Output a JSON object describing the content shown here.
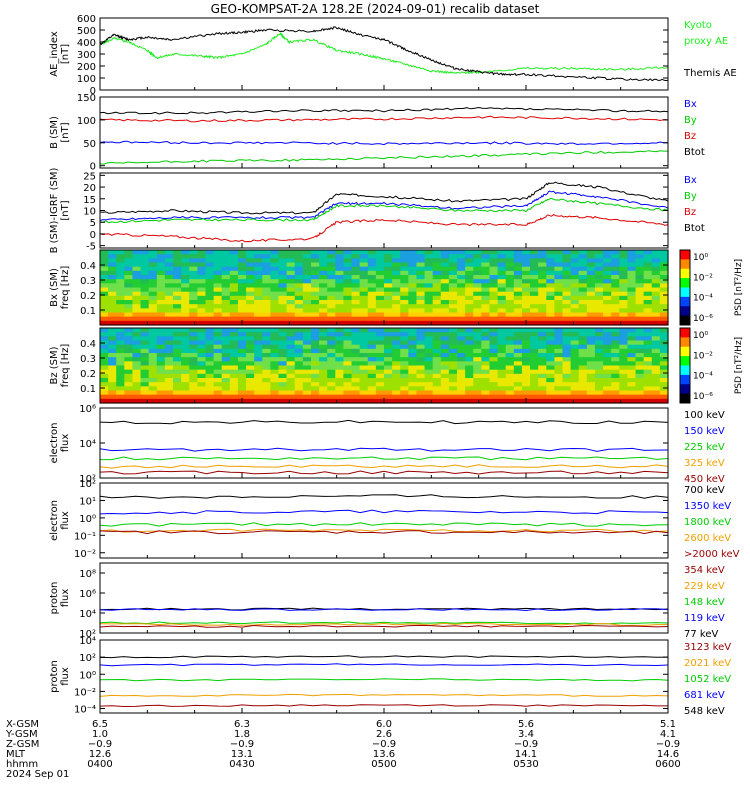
{
  "title": "GEO-KOMPSAT-2A 128.2E (2024-09-01) recalib dataset",
  "colors": {
    "black": "#000000",
    "blue": "#0000ff",
    "green": "#00cc00",
    "lime": "#22ee22",
    "red": "#dd0000",
    "orange": "#f0a000",
    "darkred": "#990000"
  },
  "panels": [
    {
      "id": "ae",
      "ylabel": [
        "AE_index",
        "[nT]"
      ],
      "scale": "linear",
      "ylim": [
        0,
        600
      ],
      "ticks": [
        "0",
        "100",
        "200",
        "300",
        "400",
        "500",
        "600"
      ],
      "tick_values": [
        0,
        100,
        200,
        300,
        400,
        500,
        600
      ],
      "legend": [
        {
          "text": "Kyoto",
          "color": "lime"
        },
        {
          "text": "proxy AE",
          "color": "lime"
        },
        {
          "text": "",
          "color": "black"
        },
        {
          "text": "Themis AE",
          "color": "black"
        }
      ],
      "series": [
        {
          "name": "Kyoto proxy AE",
          "color": "lime",
          "x": [
            0,
            3,
            6,
            10,
            12,
            16,
            22,
            25,
            30,
            35,
            38,
            40,
            45,
            50,
            55,
            60,
            65,
            70,
            75,
            80,
            90,
            100,
            110,
            120
          ],
          "y": [
            380,
            430,
            400,
            330,
            270,
            300,
            280,
            270,
            300,
            380,
            470,
            400,
            420,
            330,
            300,
            260,
            210,
            160,
            140,
            150,
            180,
            180,
            170,
            190
          ]
        },
        {
          "name": "Themis AE",
          "color": "black",
          "x": [
            0,
            3,
            6,
            10,
            15,
            25,
            30,
            35,
            45,
            50,
            55,
            60,
            65,
            70,
            75,
            80,
            85,
            90,
            100,
            110,
            120
          ],
          "y": [
            380,
            460,
            420,
            440,
            420,
            470,
            480,
            500,
            490,
            520,
            460,
            420,
            330,
            250,
            180,
            150,
            130,
            130,
            110,
            90,
            80
          ]
        }
      ]
    },
    {
      "id": "bsm",
      "ylabel": [
        "B (SM)",
        "[nT]"
      ],
      "scale": "linear",
      "ylim": [
        -5,
        150
      ],
      "ticks": [
        "0",
        "50",
        "100",
        "150"
      ],
      "tick_values": [
        0,
        50,
        100,
        150
      ],
      "legend": [
        {
          "text": "Bx",
          "color": "blue"
        },
        {
          "text": "By",
          "color": "green"
        },
        {
          "text": "Bz",
          "color": "red"
        },
        {
          "text": "Btot",
          "color": "black"
        }
      ],
      "series": [
        {
          "name": "Btot",
          "color": "black",
          "x": [
            0,
            20,
            40,
            60,
            80,
            100,
            120
          ],
          "y": [
            115,
            115,
            120,
            120,
            125,
            122,
            118
          ]
        },
        {
          "name": "Bz",
          "color": "red",
          "x": [
            0,
            20,
            40,
            60,
            80,
            100,
            120
          ],
          "y": [
            100,
            98,
            100,
            102,
            106,
            104,
            100
          ]
        },
        {
          "name": "Bx",
          "color": "blue",
          "x": [
            0,
            20,
            40,
            60,
            80,
            100,
            120
          ],
          "y": [
            52,
            50,
            50,
            48,
            50,
            48,
            50
          ]
        },
        {
          "name": "By",
          "color": "green",
          "x": [
            0,
            20,
            40,
            60,
            80,
            100,
            120
          ],
          "y": [
            4,
            10,
            12,
            17,
            22,
            28,
            32
          ]
        }
      ]
    },
    {
      "id": "bsmigrf",
      "ylabel": [
        "B (SM)-IGRF (SM)",
        "[nT]"
      ],
      "scale": "linear",
      "ylim": [
        -6,
        26
      ],
      "ticks": [
        "-5",
        "0",
        "5",
        "10",
        "15",
        "20",
        "25"
      ],
      "tick_values": [
        -5,
        0,
        5,
        10,
        15,
        20,
        25
      ],
      "legend": [
        {
          "text": "Bx",
          "color": "blue"
        },
        {
          "text": "By",
          "color": "green"
        },
        {
          "text": "Bz",
          "color": "red"
        },
        {
          "text": "Btot",
          "color": "black"
        }
      ],
      "series": [
        {
          "name": "Btot",
          "color": "black",
          "x": [
            0,
            15,
            30,
            45,
            50,
            60,
            75,
            90,
            95,
            105,
            120
          ],
          "y": [
            9,
            10,
            9,
            9,
            17,
            16,
            14,
            15,
            22,
            20,
            14
          ]
        },
        {
          "name": "Bx",
          "color": "blue",
          "x": [
            0,
            15,
            30,
            45,
            50,
            60,
            75,
            90,
            95,
            105,
            120
          ],
          "y": [
            6,
            7,
            7,
            7,
            13,
            13,
            11,
            12,
            18,
            16,
            11
          ]
        },
        {
          "name": "By",
          "color": "green",
          "x": [
            0,
            15,
            30,
            45,
            50,
            60,
            75,
            90,
            95,
            105,
            120
          ],
          "y": [
            5,
            6,
            6,
            6,
            12,
            12,
            10,
            10,
            15,
            13,
            10
          ]
        },
        {
          "name": "Bz",
          "color": "red",
          "x": [
            0,
            15,
            30,
            45,
            50,
            60,
            75,
            90,
            95,
            105,
            120
          ],
          "y": [
            0,
            -1,
            -3,
            -2,
            5,
            6,
            4,
            4,
            8,
            7,
            4
          ]
        }
      ]
    },
    {
      "id": "bxspec",
      "ylabel": [
        "Bx (SM)",
        "freq [Hz]"
      ],
      "type": "spectrogram",
      "ylim": [
        0,
        0.5
      ],
      "ticks": [
        "0.1",
        "0.2",
        "0.3",
        "0.4"
      ],
      "tick_values": [
        0.1,
        0.2,
        0.3,
        0.4
      ],
      "colorbar": {
        "label": "PSD [nT²/Hz]",
        "ticks": [
          "10⁰",
          "10⁻²",
          "10⁻⁴",
          "10⁻⁶"
        ]
      }
    },
    {
      "id": "bzspec",
      "ylabel": [
        "Bz (SM)",
        "freq [Hz]"
      ],
      "type": "spectrogram",
      "ylim": [
        0,
        0.5
      ],
      "ticks": [
        "0.1",
        "0.2",
        "0.3",
        "0.4"
      ],
      "tick_values": [
        0.1,
        0.2,
        0.3,
        0.4
      ],
      "colorbar": {
        "label": "PSD [nT²/Hz]",
        "ticks": [
          "10⁰",
          "10⁻²",
          "10⁻⁴",
          "10⁻⁶"
        ]
      }
    },
    {
      "id": "eflux1",
      "ylabel": [
        "electron",
        "flux"
      ],
      "scale": "log",
      "ylim": [
        100,
        1000000
      ],
      "ticks": [
        "10²",
        "10⁴",
        "10⁶"
      ],
      "tick_values": [
        100,
        10000,
        1000000
      ],
      "legend": [
        {
          "text": "100 keV",
          "color": "black"
        },
        {
          "text": "150 keV",
          "color": "blue"
        },
        {
          "text": "225 keV",
          "color": "green"
        },
        {
          "text": "325 keV",
          "color": "orange"
        },
        {
          "text": "450 keV",
          "color": "darkred"
        }
      ],
      "series": [
        {
          "name": "100 keV",
          "color": "black",
          "x": [
            0,
            60,
            120
          ],
          "y": [
            150000,
            160000,
            150000
          ]
        },
        {
          "name": "150 keV",
          "color": "blue",
          "x": [
            0,
            60,
            120
          ],
          "y": [
            4000,
            4200,
            4000
          ]
        },
        {
          "name": "225 keV",
          "color": "green",
          "x": [
            0,
            60,
            120
          ],
          "y": [
            1300,
            1350,
            1300
          ]
        },
        {
          "name": "325 keV",
          "color": "orange",
          "x": [
            0,
            60,
            120
          ],
          "y": [
            450,
            480,
            460
          ]
        },
        {
          "name": "450 keV",
          "color": "darkred",
          "x": [
            0,
            60,
            120
          ],
          "y": [
            200,
            210,
            200
          ]
        }
      ]
    },
    {
      "id": "eflux2",
      "ylabel": [
        "electron",
        "flux"
      ],
      "scale": "log",
      "ylim": [
        0.005,
        100
      ],
      "ticks": [
        "10⁻²",
        "10⁻¹",
        "10⁰",
        "10¹",
        "10²"
      ],
      "tick_values": [
        0.01,
        0.1,
        1,
        10,
        100
      ],
      "legend": [
        {
          "text": "700 keV",
          "color": "black"
        },
        {
          "text": "1350 keV",
          "color": "blue"
        },
        {
          "text": "1800 keV",
          "color": "green"
        },
        {
          "text": "2600 keV",
          "color": "orange"
        },
        {
          "text": ">2000 keV",
          "color": "darkred"
        }
      ],
      "series": [
        {
          "name": "700 keV",
          "color": "black",
          "x": [
            0,
            60,
            120
          ],
          "y": [
            15,
            18,
            15
          ]
        },
        {
          "name": "1350 keV",
          "color": "blue",
          "x": [
            0,
            60,
            120
          ],
          "y": [
            2,
            2.3,
            2
          ]
        },
        {
          "name": "1800 keV",
          "color": "green",
          "x": [
            0,
            60,
            120
          ],
          "y": [
            0.4,
            0.45,
            0.4
          ]
        },
        {
          "name": "2600 keV",
          "color": "orange",
          "x": [
            0,
            60,
            120
          ],
          "y": [
            0.17,
            0.2,
            0.18
          ]
        },
        {
          "name": ">2000 keV",
          "color": "darkred",
          "x": [
            0,
            60,
            120
          ],
          "y": [
            0.15,
            0.16,
            0.14
          ]
        }
      ]
    },
    {
      "id": "pflux1",
      "ylabel": [
        "proton",
        "flux"
      ],
      "scale": "log",
      "ylim": [
        100,
        1000000000
      ],
      "ticks": [
        "10²",
        "10⁴",
        "10⁶",
        "10⁸"
      ],
      "tick_values": [
        100,
        10000,
        1000000,
        100000000
      ],
      "legend": [
        {
          "text": "354 keV",
          "color": "darkred"
        },
        {
          "text": "229 keV",
          "color": "orange"
        },
        {
          "text": "148 keV",
          "color": "green"
        },
        {
          "text": "119 keV",
          "color": "blue"
        },
        {
          "text": "77 keV",
          "color": "black"
        }
      ],
      "series": [
        {
          "name": "77 keV",
          "color": "black",
          "x": [
            0,
            60,
            120
          ],
          "y": [
            25000,
            25000,
            25000
          ]
        },
        {
          "name": "119 keV",
          "color": "blue",
          "x": [
            0,
            60,
            120
          ],
          "y": [
            22000,
            22000,
            22000
          ]
        },
        {
          "name": "148 keV",
          "color": "green",
          "x": [
            0,
            60,
            120
          ],
          "y": [
            1000,
            1100,
            1000
          ]
        },
        {
          "name": "229 keV",
          "color": "orange",
          "x": [
            0,
            60,
            120
          ],
          "y": [
            700,
            750,
            700
          ]
        },
        {
          "name": "354 keV",
          "color": "darkred",
          "x": [
            0,
            60,
            120
          ],
          "y": [
            450,
            480,
            450
          ]
        }
      ]
    },
    {
      "id": "pflux2",
      "ylabel": [
        "proton",
        "flux"
      ],
      "scale": "log",
      "ylim": [
        3e-05,
        10000
      ],
      "ticks": [
        "10⁻⁴",
        "10⁻²",
        "10⁰",
        "10²",
        "10⁴"
      ],
      "tick_values": [
        0.0001,
        0.01,
        1,
        100,
        10000
      ],
      "legend": [
        {
          "text": "3123 keV",
          "color": "darkred"
        },
        {
          "text": "2021 keV",
          "color": "orange"
        },
        {
          "text": "1052 keV",
          "color": "green"
        },
        {
          "text": "681 keV",
          "color": "blue"
        },
        {
          "text": "548 keV",
          "color": "black"
        }
      ],
      "series": [
        {
          "name": "548 keV",
          "color": "black",
          "x": [
            0,
            60,
            120
          ],
          "y": [
            100,
            120,
            100
          ]
        },
        {
          "name": "681 keV",
          "color": "blue",
          "x": [
            0,
            60,
            120
          ],
          "y": [
            12,
            14,
            12
          ]
        },
        {
          "name": "1052 keV",
          "color": "green",
          "x": [
            0,
            60,
            120
          ],
          "y": [
            0.2,
            0.25,
            0.2
          ]
        },
        {
          "name": "2021 keV",
          "color": "orange",
          "x": [
            0,
            60,
            120
          ],
          "y": [
            0.003,
            0.004,
            0.003
          ]
        },
        {
          "name": "3123 keV",
          "color": "darkred",
          "x": [
            0,
            60,
            120
          ],
          "y": [
            0.0002,
            0.00025,
            0.0002
          ]
        }
      ]
    }
  ],
  "xaxis": {
    "row_labels": [
      "X-GSM",
      "Y-GSM",
      "Z-GSM",
      "MLT",
      "hhmm",
      "2024 Sep 01"
    ],
    "columns": [
      {
        "x": 0,
        "vals": [
          "6.5",
          "1.0",
          "−0.9",
          "12.6",
          "0400"
        ]
      },
      {
        "x": 30,
        "vals": [
          "6.3",
          "1.8",
          "−0.9",
          "13.1",
          "0430"
        ]
      },
      {
        "x": 60,
        "vals": [
          "6.0",
          "2.6",
          "−0.9",
          "13.6",
          "0500"
        ]
      },
      {
        "x": 90,
        "vals": [
          "5.6",
          "3.4",
          "−0.9",
          "14.1",
          "0530"
        ]
      },
      {
        "x": 120,
        "vals": [
          "5.1",
          "4.1",
          "−0.9",
          "14.6",
          "0600"
        ]
      }
    ]
  },
  "chart_data": {
    "type": "line",
    "title": "GEO-KOMPSAT-2A 128.2E (2024-09-01) recalib dataset",
    "x_domain_minutes": [
      0,
      120
    ],
    "x_ticks": [
      "0400",
      "0430",
      "0500",
      "0530",
      "0600"
    ],
    "note_panels": "multi-panel stack; see panels[] for per-panel series"
  }
}
